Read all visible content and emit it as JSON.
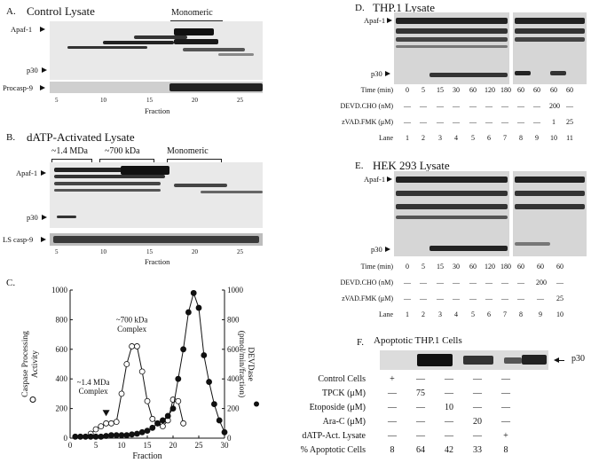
{
  "panelA": {
    "letter": "A.",
    "title": "Control Lysate",
    "bracket_label": "Monomeric",
    "label_apaf": "Apaf-1",
    "label_p30": "p30",
    "label_procasp": "Procasp-9",
    "fraction_ticks": [
      "5",
      "10",
      "15",
      "20",
      "25"
    ],
    "xlabel": "Fraction"
  },
  "panelB": {
    "letter": "B.",
    "title": "dATP-Activated Lysate",
    "bracket_labels": [
      "~1.4 MDa",
      "~700 kDa",
      "Monomeric"
    ],
    "label_apaf": "Apaf-1",
    "label_p30": "p30",
    "label_ls": "LS casp-9",
    "fraction_ticks": [
      "5",
      "10",
      "15",
      "20",
      "25"
    ],
    "xlabel": "Fraction"
  },
  "panelC": {
    "letter": "C.",
    "annotation_700": [
      "~700 kDa",
      "Complex"
    ],
    "annotation_14": [
      "~1.4 MDa",
      "Complex"
    ],
    "ylabel_left": [
      "Caspase Processing",
      "Activity"
    ],
    "ylabel_right": [
      "DEVDase",
      "(pmol/min/fraction)"
    ],
    "xlabel": "Fraction"
  },
  "panelD": {
    "letter": "D.",
    "title": "THP.1 Lysate",
    "label_apaf": "Apaf-1",
    "label_p30": "p30",
    "rows": [
      {
        "label": "Time (min)",
        "values": [
          "0",
          "5",
          "15",
          "30",
          "60",
          "120",
          "180",
          "60",
          "60",
          "60",
          "60"
        ]
      },
      {
        "label": "DEVD.CHO (nM)",
        "values": [
          "—",
          "—",
          "—",
          "—",
          "—",
          "—",
          "—",
          "—",
          "—",
          "200",
          "—"
        ]
      },
      {
        "label": "zVAD.FMK (μM)",
        "values": [
          "—",
          "—",
          "—",
          "—",
          "—",
          "—",
          "—",
          "—",
          "—",
          "1",
          "25"
        ]
      },
      {
        "label": "Lane",
        "values": [
          "1",
          "2",
          "3",
          "4",
          "5",
          "6",
          "7",
          "8",
          "9",
          "10",
          "11"
        ]
      }
    ]
  },
  "panelE": {
    "letter": "E.",
    "title": "HEK 293 Lysate",
    "label_apaf": "Apaf-1",
    "label_p30": "p30",
    "rows": [
      {
        "label": "Time (min)",
        "values": [
          "0",
          "5",
          "15",
          "30",
          "60",
          "120",
          "180",
          "60",
          "60",
          "60"
        ]
      },
      {
        "label": "DEVD.CHO (nM)",
        "values": [
          "—",
          "—",
          "—",
          "—",
          "—",
          "—",
          "—",
          "—",
          "200",
          "—"
        ]
      },
      {
        "label": "zVAD.FMK (μM)",
        "values": [
          "—",
          "—",
          "—",
          "—",
          "—",
          "—",
          "—",
          "—",
          "—",
          "25"
        ]
      },
      {
        "label": "Lane",
        "values": [
          "1",
          "2",
          "3",
          "4",
          "5",
          "6",
          "7",
          "8",
          "9",
          "10"
        ]
      }
    ]
  },
  "panelF": {
    "letter": "F.",
    "title": "Apoptotic THP.1 Cells",
    "label_p30": "p30",
    "rows": [
      {
        "label": "Control Cells",
        "values": [
          "+",
          "—",
          "—",
          "—",
          "—"
        ]
      },
      {
        "label": "TPCK (μM)",
        "values": [
          "—",
          "75",
          "—",
          "—",
          "—"
        ]
      },
      {
        "label": "Etoposide (μM)",
        "values": [
          "—",
          "—",
          "10",
          "—",
          "—"
        ]
      },
      {
        "label": "Ara-C (μM)",
        "values": [
          "—",
          "—",
          "—",
          "20",
          "—"
        ]
      },
      {
        "label": "dATP-Act. Lysate",
        "values": [
          "—",
          "—",
          "—",
          "—",
          "+"
        ]
      },
      {
        "label": "% Apoptotic Cells",
        "values": [
          "8",
          "64",
          "42",
          "33",
          "8"
        ]
      }
    ]
  },
  "chart_data": {
    "type": "line",
    "x_label": "Fraction",
    "xlim": [
      0,
      30
    ],
    "x_ticks": [
      0,
      5,
      10,
      15,
      20,
      25,
      30
    ],
    "y_left": {
      "label": "Caspase Processing Activity",
      "lim": [
        0,
        1000
      ],
      "ticks": [
        0,
        200,
        400,
        600,
        800,
        1000
      ]
    },
    "y_right": {
      "label": "DEVDase (pmol/min/fraction)",
      "lim": [
        0,
        1000
      ],
      "ticks": [
        0,
        200,
        400,
        600,
        800,
        1000
      ]
    },
    "series": [
      {
        "axis": "left",
        "marker": "open-circle",
        "x": [
          4,
          5,
          6,
          7,
          8,
          9,
          10,
          11,
          12,
          13,
          14,
          15,
          16,
          17,
          18,
          19,
          20,
          21,
          22
        ],
        "y": [
          30,
          60,
          80,
          100,
          100,
          110,
          300,
          500,
          620,
          620,
          450,
          250,
          130,
          100,
          80,
          120,
          260,
          250,
          100
        ]
      },
      {
        "axis": "right",
        "marker": "filled-circle",
        "x": [
          1,
          2,
          3,
          4,
          5,
          6,
          7,
          8,
          9,
          10,
          11,
          12,
          13,
          14,
          15,
          16,
          17,
          18,
          19,
          20,
          21,
          22,
          23,
          24,
          25,
          26,
          27,
          28,
          29,
          30
        ],
        "y": [
          10,
          10,
          10,
          10,
          10,
          10,
          15,
          20,
          20,
          20,
          20,
          25,
          30,
          40,
          50,
          70,
          100,
          120,
          150,
          200,
          400,
          600,
          850,
          980,
          880,
          560,
          380,
          230,
          120,
          40
        ]
      }
    ]
  }
}
